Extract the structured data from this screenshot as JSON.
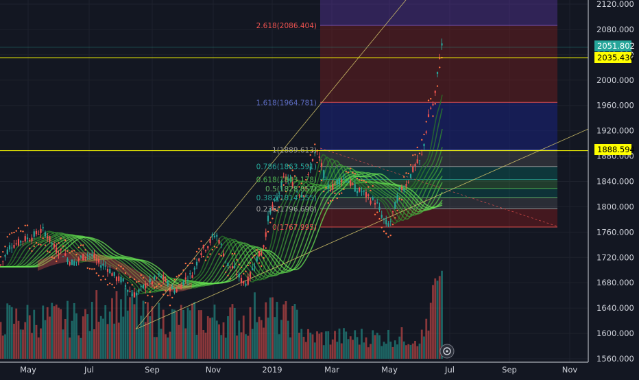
{
  "chart_data": {
    "type": "candlestick",
    "title": "",
    "xlabel": "",
    "ylabel": "",
    "x_ticks": [
      "May",
      "Jul",
      "Sep",
      "Nov",
      "2019",
      "Mar",
      "May",
      "Jul",
      "Sep",
      "Nov"
    ],
    "y_ticks": [
      "1560.000",
      "1600.000",
      "1640.000",
      "1680.000",
      "1720.000",
      "1760.000",
      "1800.000",
      "1840.000",
      "1880.000",
      "1920.000",
      "1960.000",
      "2000.000",
      "2040.000",
      "2080.000",
      "2120.000"
    ],
    "ylim": [
      1558,
      2128
    ],
    "price_labels": {
      "last": "2051.802",
      "line_high": "2035.430",
      "line_low": "1888.594"
    },
    "horizontal_lines": [
      2035.43,
      1888.594
    ],
    "fibonacci": [
      {
        "label": "2.618(2086.404)",
        "value": 2086.404
      },
      {
        "label": "1.618(1964.781)",
        "value": 1964.781
      },
      {
        "label": "1(1889.613)",
        "value": 1889.613
      },
      {
        "label": "0.786(1863.591)",
        "value": 1863.591
      },
      {
        "label": "0.618(1843.178)",
        "value": 1843.178
      },
      {
        "label": "0.5(1828.857)",
        "value": 1828.857
      },
      {
        "label": "0.382(1814.555)",
        "value": 1814.555
      },
      {
        "label": "0.236(1796.698)",
        "value": 1796.698
      },
      {
        "label": "0(1767.995)",
        "value": 1767.995
      }
    ],
    "price_path": [
      [
        "Apr 1",
        1705
      ],
      [
        "Apr 15",
        1740
      ],
      [
        "May 1",
        1750
      ],
      [
        "May 15",
        1762
      ],
      [
        "Jun 1",
        1730
      ],
      [
        "Jun 15",
        1712
      ],
      [
        "Jul 1",
        1725
      ],
      [
        "Jul 15",
        1708
      ],
      [
        "Aug 1",
        1685
      ],
      [
        "Aug 15",
        1662
      ],
      [
        "Sep 1",
        1680
      ],
      [
        "Sep 10",
        1690
      ],
      [
        "Sep 25",
        1668
      ],
      [
        "Oct 10",
        1690
      ],
      [
        "Oct 25",
        1735
      ],
      [
        "Nov 5",
        1755
      ],
      [
        "Nov 20",
        1705
      ],
      [
        "Dec 5",
        1680
      ],
      [
        "Dec 20",
        1725
      ],
      [
        "Jan 1",
        1800
      ],
      [
        "Jan 15",
        1845
      ],
      [
        "Feb 1",
        1820
      ],
      [
        "Feb 15",
        1885
      ],
      [
        "Mar 1",
        1830
      ],
      [
        "Mar 15",
        1845
      ],
      [
        "Apr 1",
        1825
      ],
      [
        "Apr 15",
        1810
      ],
      [
        "Apr 30",
        1772
      ],
      [
        "May 15",
        1830
      ],
      [
        "Jun 1",
        1870
      ],
      [
        "Jun 15",
        1960
      ],
      [
        "Jun 25",
        2055
      ]
    ]
  }
}
